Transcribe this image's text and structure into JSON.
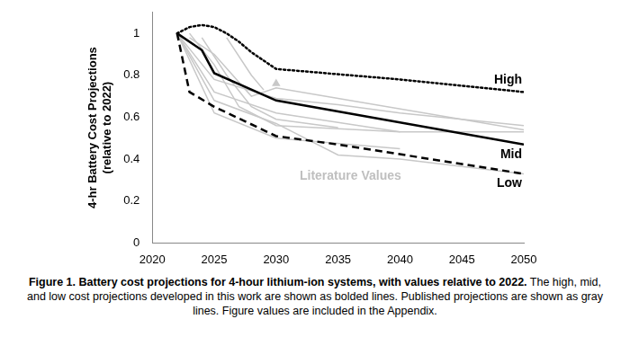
{
  "chart_data": {
    "type": "line",
    "xlabel": null,
    "ylabel": [
      "4-hr Battery Cost Projections",
      "(relative to 2022)"
    ],
    "caption_bold": "Figure 1. Battery cost projections for 4-hour lithium-ion systems, with values relative to 2022.",
    "caption": "The high, mid, and low cost projections developed in this work are shown as bolded lines. Published projections are shown as gray lines. Figure values are included in the Appendix.",
    "xlim": [
      2020,
      2050
    ],
    "xticks": [
      2020,
      2025,
      2030,
      2035,
      2040,
      2045,
      2050
    ],
    "ylim": [
      0,
      1.1
    ],
    "yticks": [
      0,
      0.2,
      0.4,
      0.6,
      0.8,
      1
    ],
    "grid": false,
    "series": [
      {
        "name": "High",
        "color": "#000000",
        "line_style": "dotted",
        "x": [
          2022,
          2023,
          2024,
          2025,
          2026,
          2027,
          2028,
          2029,
          2030,
          2040,
          2050
        ],
        "values": [
          1.0,
          1.03,
          1.04,
          1.03,
          1.0,
          0.96,
          0.91,
          0.87,
          0.83,
          0.78,
          0.72
        ]
      },
      {
        "name": "Mid",
        "color": "#000000",
        "line_style": "solid",
        "x": [
          2022,
          2024,
          2025,
          2030,
          2050
        ],
        "values": [
          1.0,
          0.92,
          0.81,
          0.68,
          0.47
        ]
      },
      {
        "name": "Low",
        "color": "#000000",
        "line_style": "dashed",
        "x": [
          2022,
          2023,
          2025,
          2030,
          2035,
          2050
        ],
        "values": [
          1.0,
          0.72,
          0.65,
          0.51,
          0.47,
          0.33
        ]
      },
      {
        "color": "#c8c8c8",
        "line_style": "solid",
        "x": [
          2022,
          2025,
          2030,
          2035,
          2040,
          2050
        ],
        "values": [
          1.0,
          0.78,
          0.69,
          0.66,
          0.62,
          0.56
        ]
      },
      {
        "color": "#c8c8c8",
        "line_style": "solid",
        "x": [
          2022,
          2025,
          2030,
          2040,
          2050
        ],
        "values": [
          1.0,
          0.72,
          0.62,
          0.53,
          0.53
        ]
      },
      {
        "color": "#c8c8c8",
        "line_style": "solid",
        "x": [
          2023,
          2025,
          2027,
          2030,
          2040
        ],
        "values": [
          1.0,
          0.85,
          0.65,
          0.56,
          0.53
        ]
      },
      {
        "color": "#c8c8c8",
        "line_style": "solid",
        "x": [
          2024,
          2026,
          2028,
          2030,
          2035
        ],
        "values": [
          0.98,
          0.8,
          0.65,
          0.59,
          0.55
        ]
      },
      {
        "color": "#c8c8c8",
        "line_style": "solid",
        "x": [
          2022,
          2025,
          2030,
          2035,
          2040,
          2050
        ],
        "values": [
          1.0,
          0.68,
          0.57,
          0.42,
          0.4,
          0.33
        ]
      },
      {
        "color": "#c8c8c8",
        "line_style": "solid",
        "x": [
          2023,
          2025,
          2028,
          2030,
          2035,
          2050
        ],
        "values": [
          0.98,
          0.9,
          0.7,
          0.74,
          0.69,
          0.54
        ]
      },
      {
        "color": "#c8c8c8",
        "line_style": "solid",
        "x": [
          2022,
          2025,
          2030,
          2040
        ],
        "values": [
          1.0,
          0.62,
          0.5,
          0.45
        ]
      },
      {
        "color": "#c8c8c8",
        "line_style": "solid",
        "x": [
          2026,
          2028,
          2029
        ],
        "values": [
          0.98,
          0.8,
          0.73
        ]
      },
      {
        "color": "#c8c8c8",
        "marker": "triangle",
        "x": [
          2030
        ],
        "values": [
          0.76
        ]
      }
    ],
    "annotations": [
      {
        "text": "Literature Values",
        "x": 2036,
        "y": 0.32,
        "color": "#bfbfbf"
      }
    ]
  }
}
